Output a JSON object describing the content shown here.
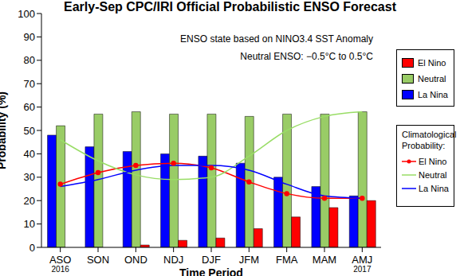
{
  "chart_data": {
    "type": "bar",
    "title": "Early-Sep CPC/IRI Official Probabilistic ENSO Forecast",
    "x_label": "Time Period",
    "y_label": "Probability (%)",
    "annotations": [
      "ENSO state based on NINO3.4 SST Anomaly",
      "Neutral ENSO: −0.5°C to 0.5°C"
    ],
    "legend_title": "Climatological Probability:",
    "legend": "right",
    "categories": [
      "ASO 2016",
      "SON",
      "OND",
      "NDJ",
      "DJF",
      "JFM",
      "FMA",
      "MAM",
      "AMJ 2017"
    ],
    "series": [
      {
        "name": "La Nina",
        "type": "bar",
        "color": "#0000ff",
        "values": [
          48,
          43,
          41,
          40,
          39,
          36,
          30,
          26,
          22
        ]
      },
      {
        "name": "Neutral",
        "type": "bar",
        "color": "#99cc66",
        "values": [
          52,
          57,
          58,
          57,
          57,
          56,
          57,
          57,
          58
        ]
      },
      {
        "name": "El Nino",
        "type": "bar",
        "color": "#ff0000",
        "values": [
          0,
          0,
          1,
          3,
          4,
          8,
          13,
          17,
          20
        ]
      },
      {
        "name": "El Nino",
        "type": "line",
        "color": "#ff0000",
        "marker": "circle",
        "values": [
          27,
          32,
          35,
          36,
          34,
          28,
          23,
          21,
          21
        ]
      },
      {
        "name": "Neutral",
        "type": "line",
        "color": "#99dd66",
        "marker": "none",
        "values": [
          46,
          37,
          31,
          29,
          30,
          39,
          50,
          56,
          58
        ]
      },
      {
        "name": "La Nina",
        "type": "line",
        "color": "#0000ff",
        "marker": "none",
        "values": [
          26,
          29,
          33,
          35,
          35,
          33,
          27,
          22,
          21
        ]
      }
    ],
    "ylim": [
      0,
      100
    ],
    "yticks": [
      0,
      10,
      20,
      30,
      40,
      50,
      60,
      70,
      80,
      90,
      100
    ],
    "grid": false
  }
}
